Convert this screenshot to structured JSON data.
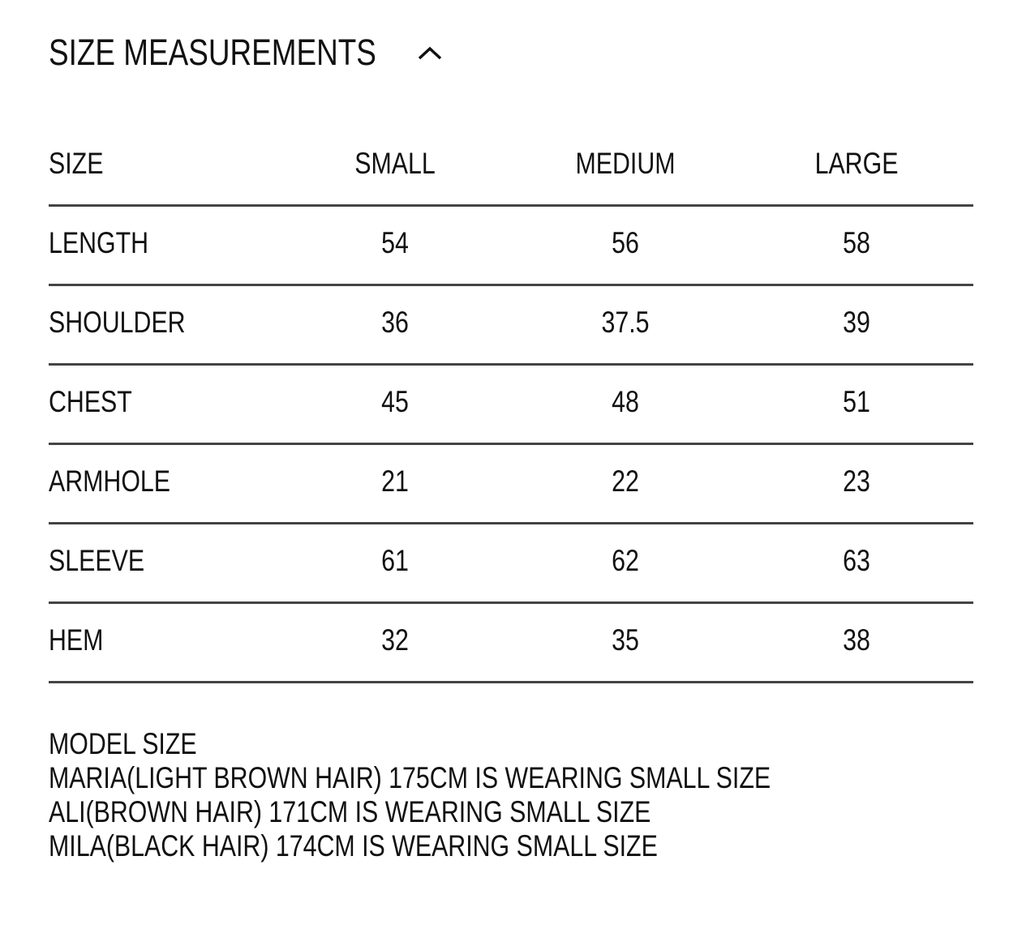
{
  "header": {
    "title": "SIZE MEASUREMENTS"
  },
  "table": {
    "columns": [
      "SIZE",
      "SMALL",
      "MEDIUM",
      "LARGE"
    ],
    "rows": [
      [
        "LENGTH",
        "54",
        "56",
        "58"
      ],
      [
        "SHOULDER",
        "36",
        "37.5",
        "39"
      ],
      [
        "CHEST",
        "45",
        "48",
        "51"
      ],
      [
        "ARMHOLE",
        "21",
        "22",
        "23"
      ],
      [
        "SLEEVE",
        "61",
        "62",
        "63"
      ],
      [
        "HEM",
        "32",
        "35",
        "38"
      ]
    ]
  },
  "model_size": {
    "title": "MODEL SIZE",
    "lines": [
      "MARIA(LIGHT BROWN HAIR) 175CM IS WEARING SMALL SIZE",
      "ALI(BROWN HAIR) 171CM IS WEARING SMALL SIZE",
      "MILA(BLACK HAIR) 174CM IS WEARING SMALL SIZE"
    ]
  }
}
